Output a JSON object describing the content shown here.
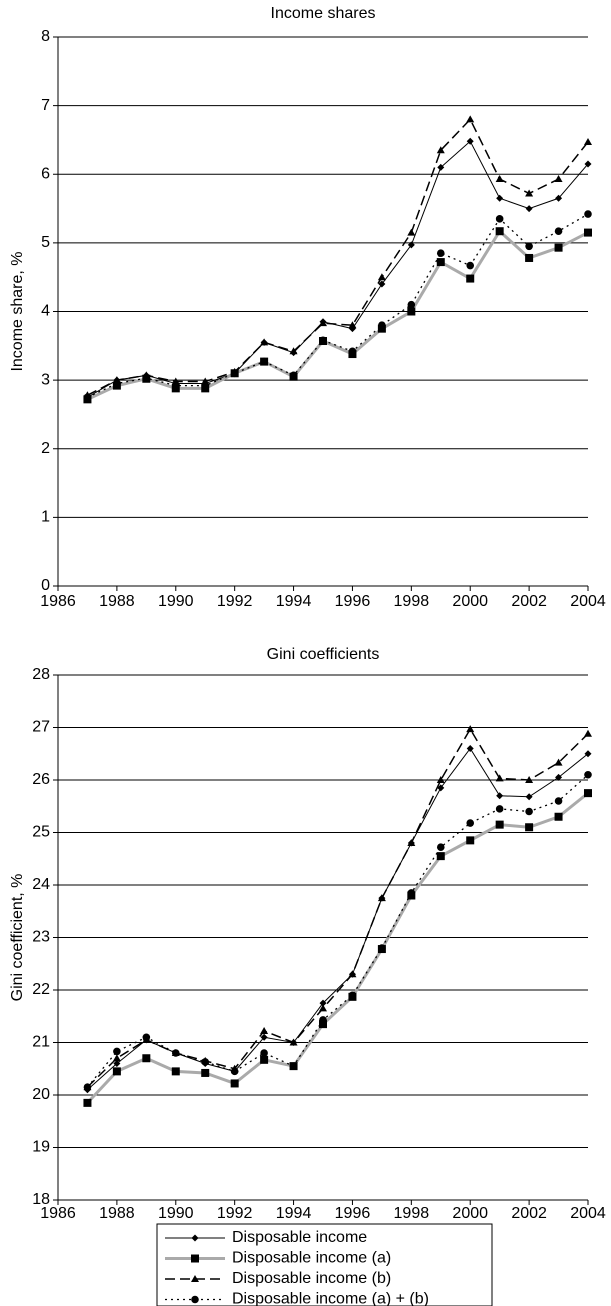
{
  "chart_data": [
    {
      "type": "line",
      "title": "Income shares",
      "y_label": "Income share, %",
      "x": [
        1987,
        1988,
        1989,
        1990,
        1991,
        1992,
        1993,
        1994,
        1995,
        1996,
        1997,
        1998,
        1999,
        2000,
        2001,
        2002,
        2003,
        2004
      ],
      "xlim": [
        1986,
        2004
      ],
      "xticks": [
        1986,
        1988,
        1990,
        1992,
        1994,
        1996,
        1998,
        2000,
        2002,
        2004
      ],
      "ylim": [
        0,
        8
      ],
      "yticks": [
        0,
        1,
        2,
        3,
        4,
        5,
        6,
        7,
        8
      ],
      "grid": true,
      "series": [
        {
          "color": "#000000",
          "width": 1,
          "dash": "none",
          "marker": "diamond",
          "values": [
            2.75,
            3.0,
            3.07,
            2.95,
            2.95,
            3.1,
            3.55,
            3.4,
            3.85,
            3.75,
            4.4,
            4.97,
            6.1,
            6.48,
            5.65,
            5.5,
            5.65,
            6.15
          ]
        },
        {
          "color": "#aaaaaa",
          "width": 3,
          "dash": "none",
          "marker": "square",
          "values": [
            2.72,
            2.92,
            3.02,
            2.88,
            2.88,
            3.1,
            3.27,
            3.05,
            3.57,
            3.38,
            3.75,
            4.0,
            4.72,
            4.48,
            5.17,
            4.78,
            4.93,
            5.15
          ]
        },
        {
          "color": "#000000",
          "width": 1.5,
          "dash": "10 5",
          "marker": "triangle",
          "values": [
            2.78,
            3.0,
            3.07,
            2.98,
            2.98,
            3.12,
            3.55,
            3.42,
            3.83,
            3.8,
            4.5,
            5.15,
            6.35,
            6.8,
            5.93,
            5.72,
            5.93,
            6.47
          ]
        },
        {
          "color": "#000000",
          "width": 1.3,
          "dash": "2 4",
          "marker": "circle",
          "values": [
            2.75,
            2.95,
            3.03,
            2.92,
            2.92,
            3.1,
            3.27,
            3.07,
            3.58,
            3.42,
            3.8,
            4.1,
            4.85,
            4.67,
            5.35,
            4.95,
            5.17,
            5.42
          ]
        }
      ]
    },
    {
      "type": "line",
      "title": "Gini coefficients",
      "y_label": "Gini coefficient, %",
      "x": [
        1987,
        1988,
        1989,
        1990,
        1991,
        1992,
        1993,
        1994,
        1995,
        1996,
        1997,
        1998,
        1999,
        2000,
        2001,
        2002,
        2003,
        2004
      ],
      "xlim": [
        1986,
        2004
      ],
      "xticks": [
        1986,
        1988,
        1990,
        1992,
        1994,
        1996,
        1998,
        2000,
        2002,
        2004
      ],
      "ylim": [
        18,
        28
      ],
      "yticks": [
        18,
        19,
        20,
        21,
        22,
        23,
        24,
        25,
        26,
        27,
        28
      ],
      "grid": true,
      "series": [
        {
          "name": "Disposable income",
          "color": "#000000",
          "width": 1,
          "dash": "none",
          "marker": "diamond",
          "values": [
            20.1,
            20.6,
            21.05,
            20.8,
            20.6,
            20.45,
            21.1,
            21.0,
            21.75,
            22.3,
            23.75,
            24.8,
            25.85,
            26.6,
            25.7,
            25.68,
            26.05,
            26.5
          ]
        },
        {
          "name": "Disposable income (a)",
          "color": "#aaaaaa",
          "width": 3,
          "dash": "none",
          "marker": "square",
          "values": [
            19.85,
            20.45,
            20.7,
            20.45,
            20.42,
            20.22,
            20.67,
            20.55,
            21.35,
            21.87,
            22.78,
            23.8,
            24.55,
            24.85,
            25.15,
            25.1,
            25.3,
            25.75
          ]
        },
        {
          "name": "Disposable income (b)",
          "color": "#000000",
          "width": 1.5,
          "dash": "10 5",
          "marker": "triangle",
          "values": [
            20.15,
            20.7,
            21.05,
            20.8,
            20.65,
            20.5,
            21.22,
            21.0,
            21.65,
            22.3,
            23.75,
            24.8,
            26.0,
            26.97,
            26.03,
            26.0,
            26.33,
            26.88
          ]
        },
        {
          "name": "Disposable income (a) + (b)",
          "color": "#000000",
          "width": 1.3,
          "dash": "2 4",
          "marker": "circle",
          "values": [
            20.15,
            20.83,
            21.1,
            20.8,
            20.63,
            20.45,
            20.8,
            20.55,
            21.43,
            21.9,
            22.8,
            23.85,
            24.72,
            25.18,
            25.45,
            25.4,
            25.6,
            26.1
          ]
        }
      ]
    }
  ]
}
